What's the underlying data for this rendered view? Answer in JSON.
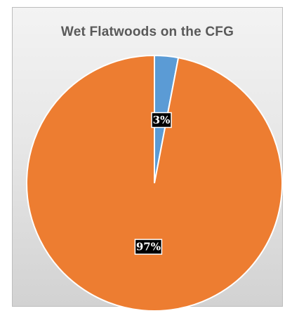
{
  "chart_data": {
    "type": "pie",
    "title": "Wet Flatwoods on the CFG",
    "slices": [
      {
        "label": "3%",
        "value": 3,
        "color": "#5b9bd5"
      },
      {
        "label": "97%",
        "value": 97,
        "color": "#ed7d31"
      }
    ],
    "legend": "none"
  }
}
